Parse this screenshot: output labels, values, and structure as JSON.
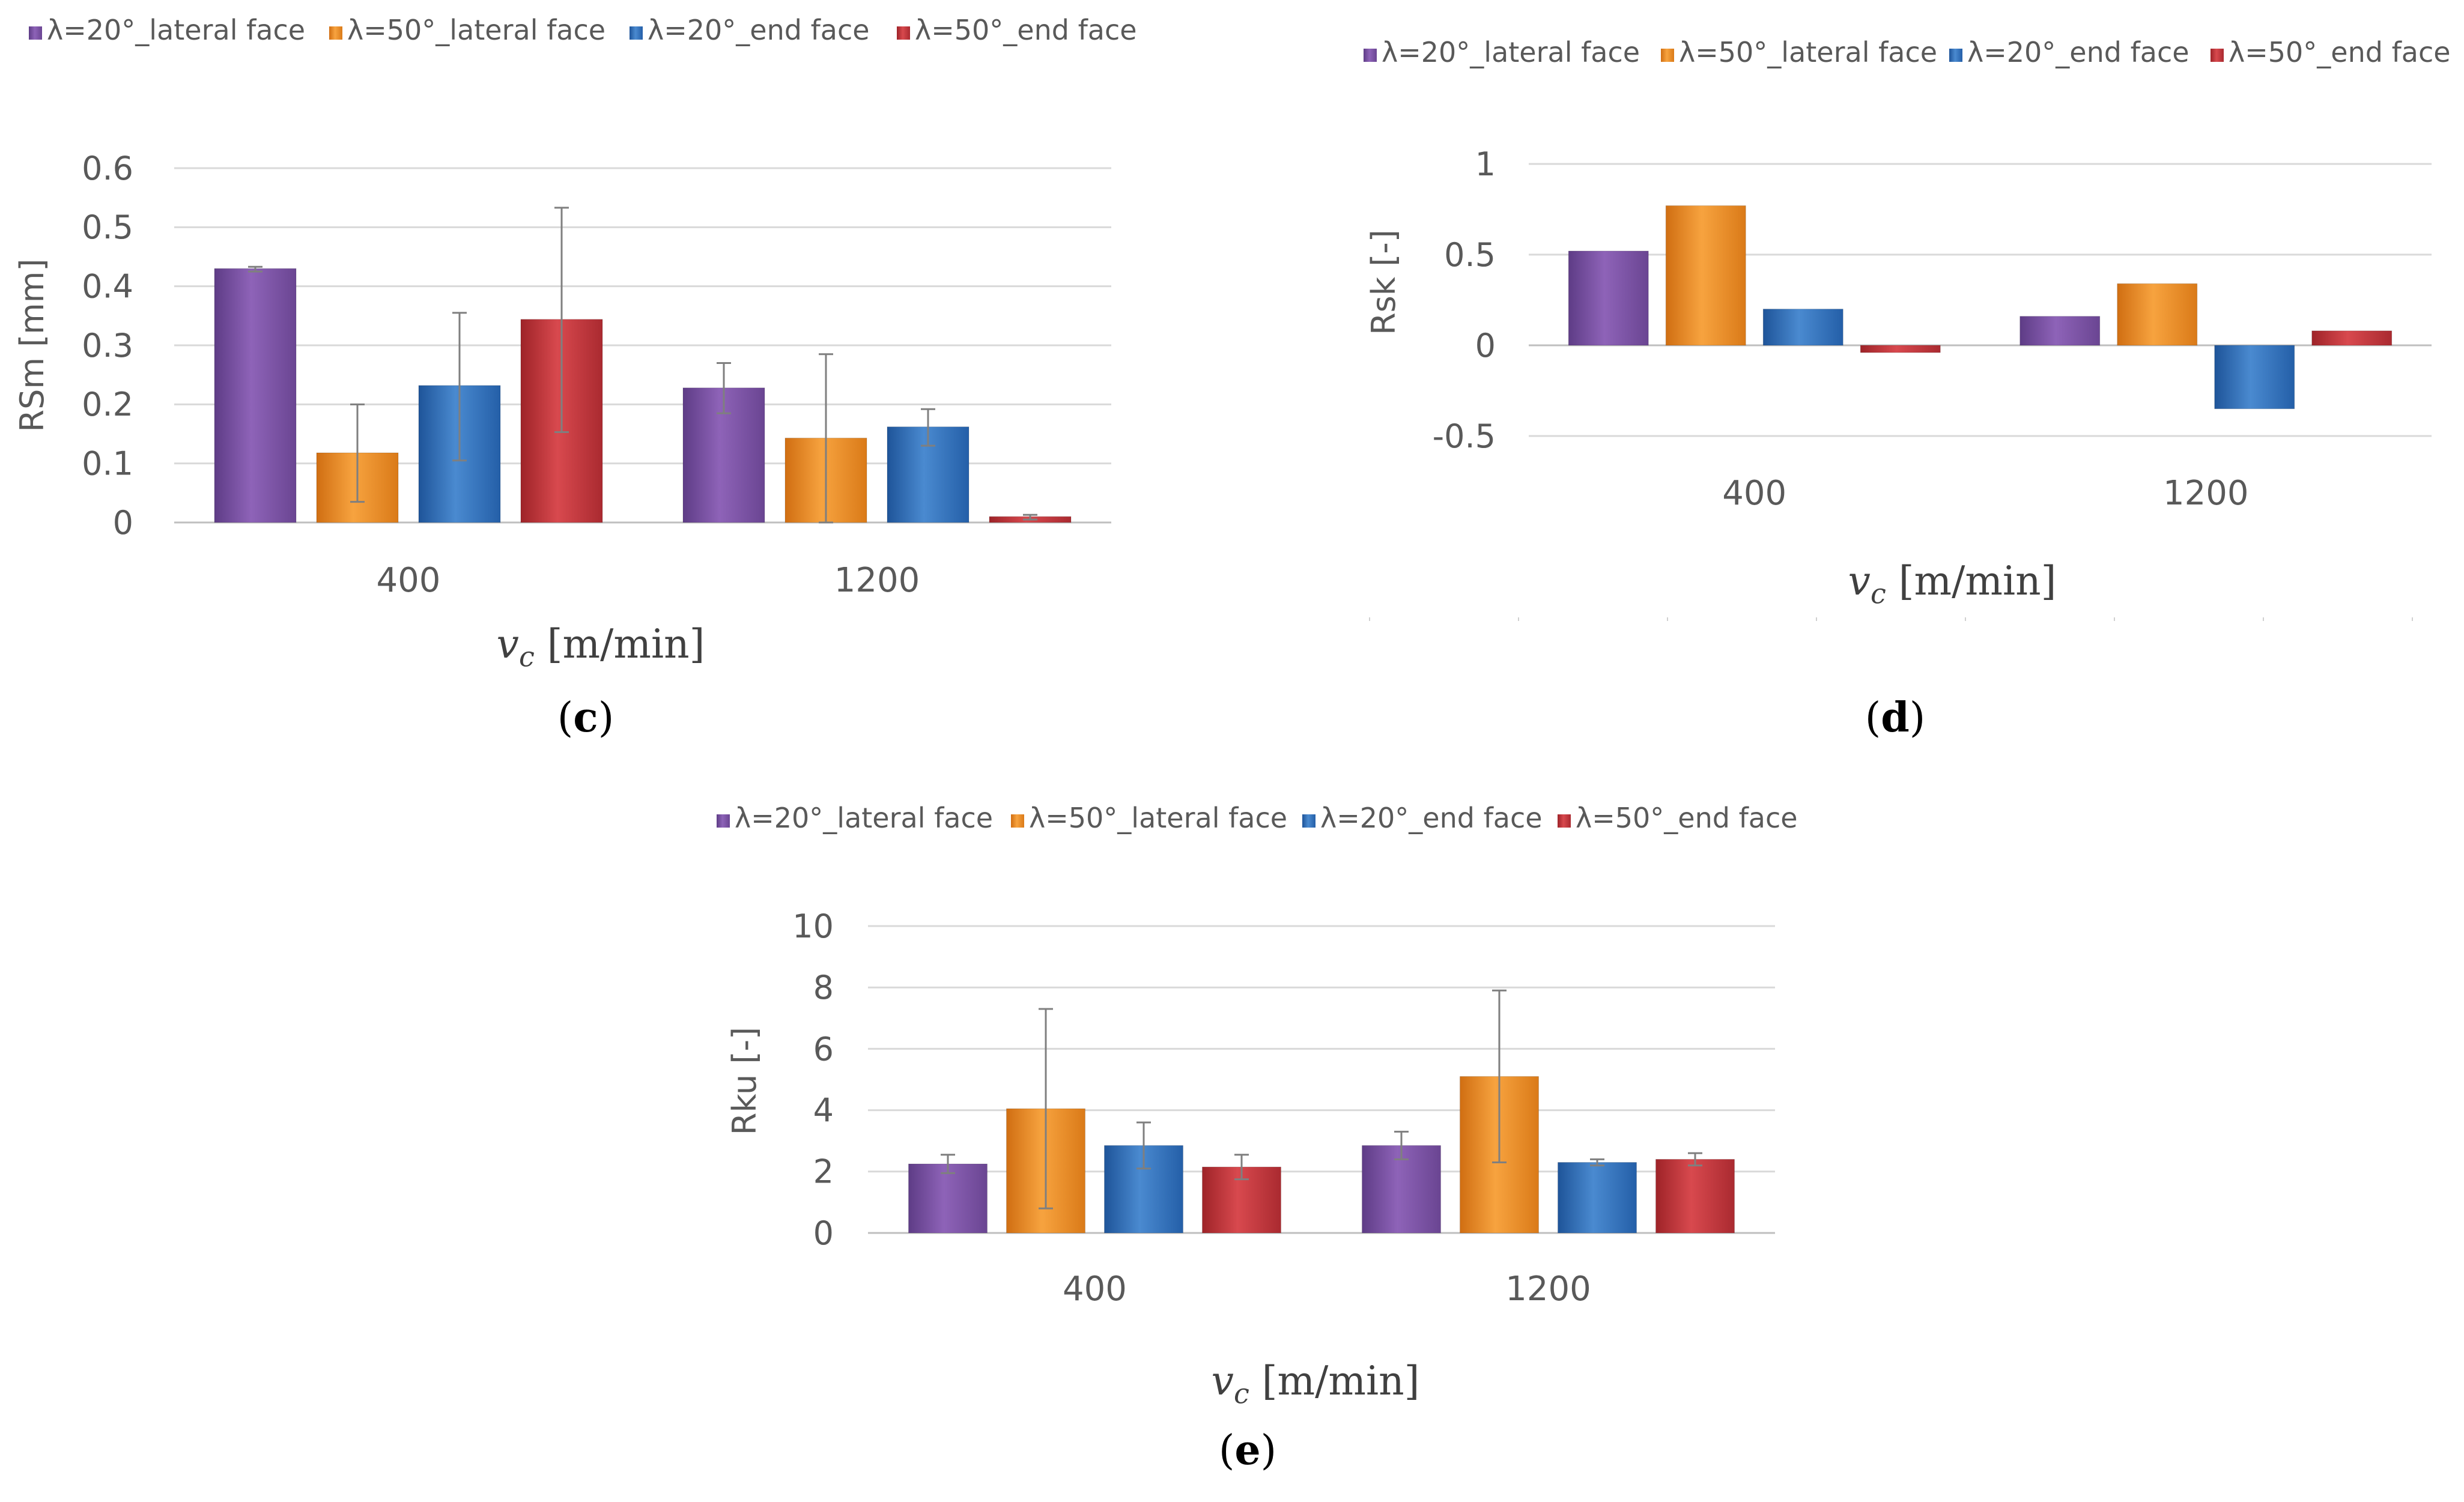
{
  "chart_data": [
    {
      "type": "bar",
      "panel": "c",
      "categories": [
        "400",
        "1200"
      ],
      "series": [
        {
          "name": "λ=20°_lateral face",
          "color": "#7B52A5",
          "values": [
            0.43,
            0.228
          ],
          "err_lo": [
            0.425,
            0.185
          ],
          "err_hi": [
            0.433,
            0.27
          ]
        },
        {
          "name": "λ=50°_lateral face",
          "color": "#E8871E",
          "values": [
            0.118,
            0.143
          ],
          "err_lo": [
            0.035,
            0.0
          ],
          "err_hi": [
            0.2,
            0.285
          ]
        },
        {
          "name": "λ=20°_end face",
          "color": "#2E6FB8",
          "values": [
            0.232,
            0.162
          ],
          "err_lo": [
            0.105,
            0.13
          ],
          "err_hi": [
            0.355,
            0.192
          ]
        },
        {
          "name": "λ=50°_end face",
          "color": "#C0343A",
          "values": [
            0.344,
            0.01
          ],
          "err_lo": [
            0.153,
            0.005
          ],
          "err_hi": [
            0.533,
            0.013
          ]
        }
      ],
      "ylabel": "RSm [mm]",
      "xlabel_main": "v",
      "xlabel_sub": "c",
      "xlabel_unit": "[m/min]",
      "ylim": [
        0,
        0.6
      ],
      "yticks": [
        "0",
        "0.1",
        "0.2",
        "0.3",
        "0.4",
        "0.5",
        "0.6"
      ],
      "ytick_values": [
        0,
        0.1,
        0.2,
        0.3,
        0.4,
        0.5,
        0.6
      ],
      "caption_open": "(",
      "caption_letter": "c",
      "caption_close": ")"
    },
    {
      "type": "bar",
      "panel": "d",
      "categories": [
        "400",
        "1200"
      ],
      "series": [
        {
          "name": "λ=20°_lateral face",
          "color": "#7B52A5",
          "values": [
            0.52,
            0.16
          ]
        },
        {
          "name": "λ=50°_lateral face",
          "color": "#E8871E",
          "values": [
            0.77,
            0.34
          ]
        },
        {
          "name": "λ=20°_end face",
          "color": "#2E6FB8",
          "values": [
            0.2,
            -0.35
          ]
        },
        {
          "name": "λ=50°_end face",
          "color": "#C0343A",
          "values": [
            -0.04,
            0.08
          ]
        }
      ],
      "ylabel": "Rsk [-]",
      "xlabel_main": "v",
      "xlabel_sub": "c",
      "xlabel_unit": "[m/min]",
      "ylim": [
        -0.5,
        1
      ],
      "yticks": [
        "-0.5",
        "0",
        "0.5",
        "1"
      ],
      "ytick_values": [
        -0.5,
        0,
        0.5,
        1
      ],
      "caption_open": "(",
      "caption_letter": "d",
      "caption_close": ")"
    },
    {
      "type": "bar",
      "panel": "e",
      "categories": [
        "400",
        "1200"
      ],
      "series": [
        {
          "name": "λ=20°_lateral face",
          "color": "#7B52A5",
          "values": [
            2.25,
            2.85
          ],
          "err_lo": [
            1.95,
            2.4
          ],
          "err_hi": [
            2.55,
            3.3
          ]
        },
        {
          "name": "λ=50°_lateral face",
          "color": "#E8871E",
          "values": [
            4.05,
            5.1
          ],
          "err_lo": [
            0.8,
            2.3
          ],
          "err_hi": [
            7.3,
            7.9
          ]
        },
        {
          "name": "λ=20°_end face",
          "color": "#2E6FB8",
          "values": [
            2.85,
            2.3
          ],
          "err_lo": [
            2.1,
            2.2
          ],
          "err_hi": [
            3.6,
            2.4
          ]
        },
        {
          "name": "λ=50°_end face",
          "color": "#C0343A",
          "values": [
            2.15,
            2.4
          ],
          "err_lo": [
            1.75,
            2.2
          ],
          "err_hi": [
            2.55,
            2.6
          ]
        }
      ],
      "ylabel": "Rku [-]",
      "xlabel_main": "v",
      "xlabel_sub": "c",
      "xlabel_unit": "[m/min]",
      "ylim": [
        0,
        10
      ],
      "yticks": [
        "0",
        "2",
        "4",
        "6",
        "8",
        "10"
      ],
      "ytick_values": [
        0,
        2,
        4,
        6,
        8,
        10
      ],
      "caption_open": "(",
      "caption_letter": "e",
      "caption_close": ")"
    }
  ]
}
